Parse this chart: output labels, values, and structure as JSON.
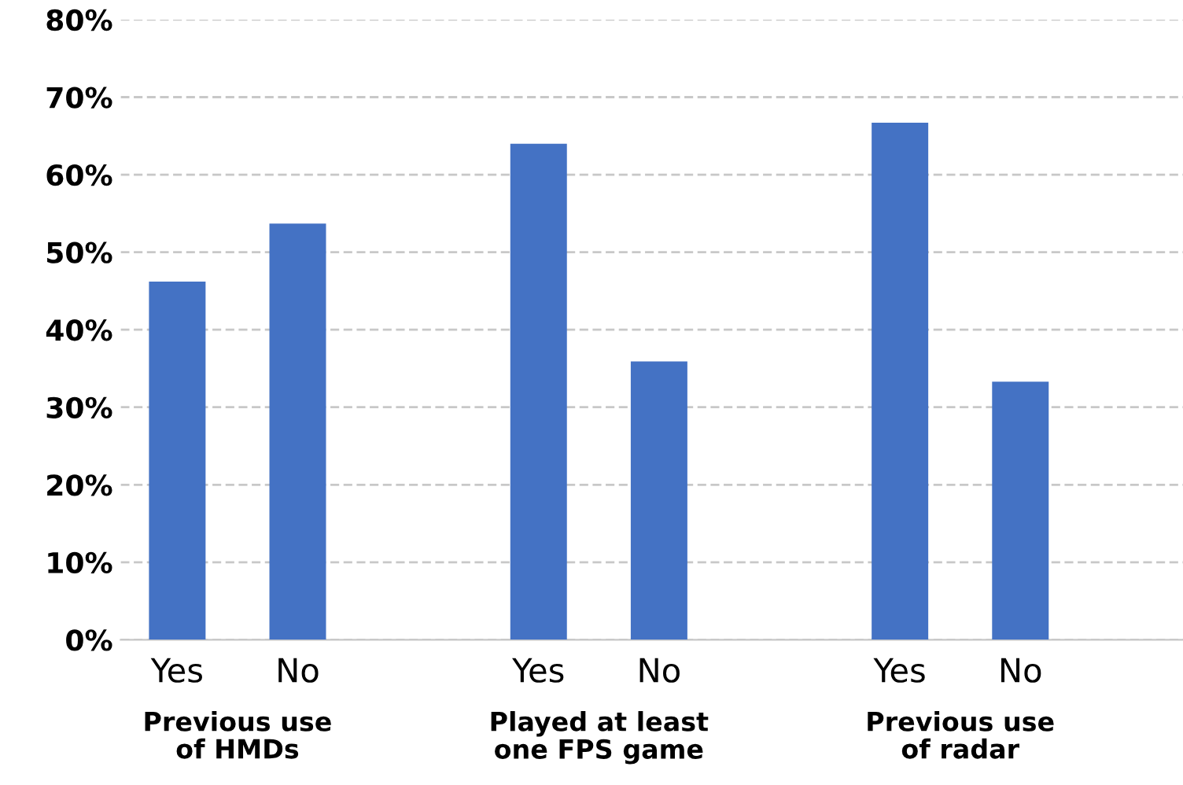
{
  "chart_data": {
    "type": "bar",
    "categories": [
      "Yes",
      "No",
      null,
      "Yes",
      "No",
      null,
      "Yes",
      "No"
    ],
    "values": [
      46.2,
      53.7,
      null,
      64.0,
      35.9,
      null,
      66.7,
      33.3
    ],
    "color": "#4472c4",
    "ylim": [
      0,
      80
    ],
    "yticks": [
      {
        "value": 0,
        "label": "0%"
      },
      {
        "value": 10,
        "label": "10%"
      },
      {
        "value": 20,
        "label": "20%"
      },
      {
        "value": 30,
        "label": "30%"
      },
      {
        "value": 40,
        "label": "40%"
      },
      {
        "value": 50,
        "label": "50%"
      },
      {
        "value": 60,
        "label": "60%"
      },
      {
        "value": 70,
        "label": "70%"
      },
      {
        "value": 80,
        "label": "80%"
      }
    ],
    "grid": "y",
    "annotations": [
      "Previous use\nof HMDs",
      "Played at least\none FPS game",
      "Previous use\nof radar"
    ]
  }
}
